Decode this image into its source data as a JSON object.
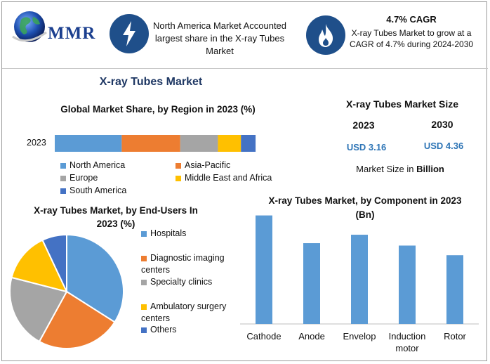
{
  "header": {
    "logo_text": "MMR",
    "box1_text": "North America Market Accounted largest share in the X-ray Tubes Market",
    "box2_title": "4.7% CAGR",
    "box2_text": "X-ray Tubes Market to grow at a CAGR of 4.7% during 2024-2030"
  },
  "page_title": "X-ray Tubes Market",
  "market_size": {
    "title": "X-ray Tubes Market Size",
    "year1": "2023",
    "year2": "2030",
    "value1": "USD 3.16",
    "value2": "USD 4.36",
    "unit_prefix": "Market Size in ",
    "unit_bold": "Billion"
  },
  "colors": {
    "blue": "#5b9bd5",
    "orange": "#ed7d31",
    "gray": "#a5a5a5",
    "yellow": "#ffc000",
    "darkblue": "#4472c4",
    "icon": "#1f4f8a",
    "value_text": "#2e75b6"
  },
  "icons": [
    "globe-icon",
    "lightning-icon",
    "flame-icon"
  ],
  "chart_data": [
    {
      "type": "bar",
      "orientation": "horizontal",
      "stacked": true,
      "title": "Global Market Share, by Region in 2023 (%)",
      "categories": [
        "2023"
      ],
      "series": [
        {
          "name": "North America",
          "values": [
            32
          ]
        },
        {
          "name": "Asia-Pacific",
          "values": [
            28
          ]
        },
        {
          "name": "Europe",
          "values": [
            18
          ]
        },
        {
          "name": "Middle East and Africa",
          "values": [
            11
          ]
        },
        {
          "name": "South America",
          "values": [
            7
          ]
        }
      ],
      "legend": "bottom"
    },
    {
      "type": "pie",
      "title": "X-ray Tubes Market, by End-Users In 2023 (%)",
      "labels": [
        "Hospitals",
        "Diagnostic imaging centers",
        "Specialty clinics",
        "Ambulatory surgery centers",
        "Others"
      ],
      "values": [
        34,
        24,
        21,
        14,
        7
      ],
      "legend": "right"
    },
    {
      "type": "bar",
      "title": "X-ray Tubes Market, by Component in 2023 (Bn)",
      "categories": [
        "Cathode",
        "Anode",
        "Envelop",
        "Induction motor",
        "Rotor"
      ],
      "values": [
        0.9,
        0.67,
        0.74,
        0.65,
        0.57
      ],
      "ylim": [
        0,
        0.95
      ],
      "axis_labels_shown": false
    }
  ]
}
